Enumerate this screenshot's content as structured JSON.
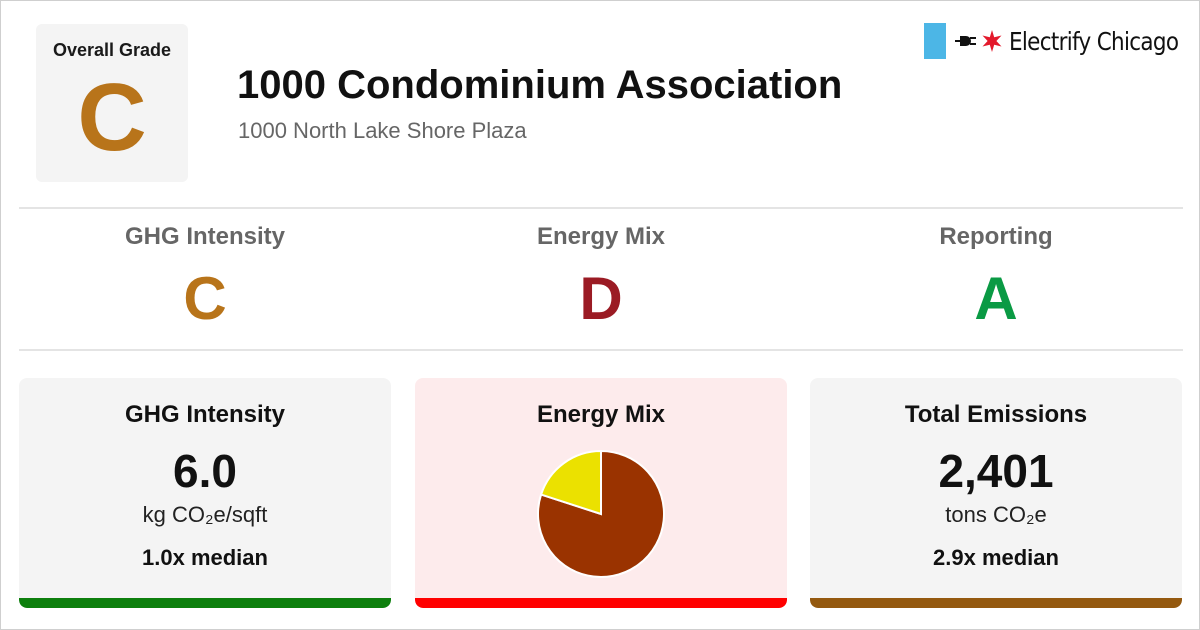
{
  "overall": {
    "label": "Overall Grade",
    "grade": "C",
    "color": "#b8741a"
  },
  "building": {
    "name": "1000 Condominium Association",
    "address": "1000 North Lake Shore Plaza"
  },
  "brand": {
    "name": "Electrify Chicago",
    "flag_color": "#4cb6e6",
    "star_color": "#e3192c"
  },
  "grades": [
    {
      "label": "GHG Intensity",
      "grade": "C",
      "color": "#b8741a"
    },
    {
      "label": "Energy Mix",
      "grade": "D",
      "color": "#9b1b24"
    },
    {
      "label": "Reporting",
      "grade": "A",
      "color": "#0a9a44"
    }
  ],
  "cards": {
    "ghg": {
      "title": "GHG Intensity",
      "value": "6.0",
      "unit": "kg CO₂e/sqft",
      "median": "1.0x median",
      "bg": "#f4f4f4",
      "bar_color": "#0d7f0d"
    },
    "mix": {
      "title": "Energy Mix",
      "bg": "#fdebec",
      "bar_color": "#ff0000"
    },
    "total": {
      "title": "Total Emissions",
      "value": "2,401",
      "unit": "tons CO₂e",
      "median": "2.9x median",
      "bg": "#f4f4f4",
      "bar_color": "#94590f"
    }
  },
  "chart_data": {
    "type": "pie",
    "slices": [
      {
        "value": 80,
        "color": "#9a3300"
      },
      {
        "value": 20,
        "color": "#ebe100"
      }
    ]
  }
}
